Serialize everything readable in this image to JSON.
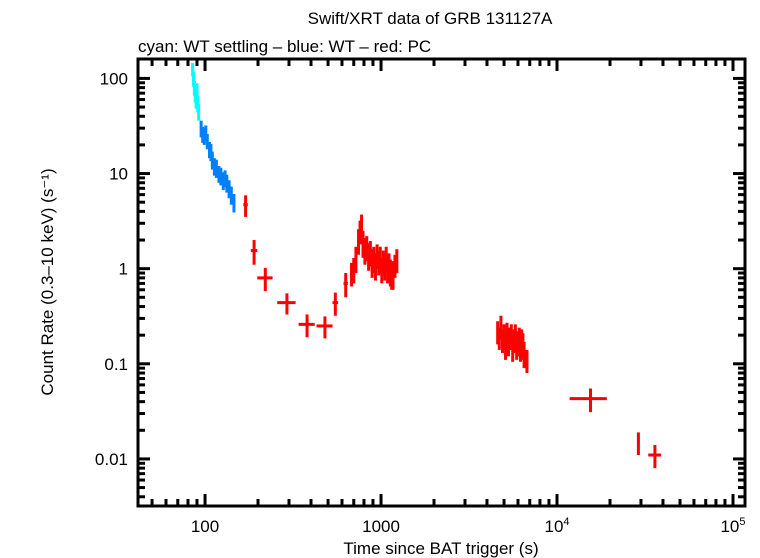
{
  "chart_data": {
    "type": "scatter",
    "title": "Swift/XRT data of GRB 131127A",
    "subtitle": "cyan: WT settling – blue: WT – red: PC",
    "xlabel": "Time since BAT trigger (s)",
    "ylabel": "Count Rate (0.3–10 keV) (s⁻¹)",
    "xscale": "log",
    "yscale": "log",
    "xlim": [
      41.6,
      117000
    ],
    "ylim": [
      0.0032,
      160
    ],
    "grid": false,
    "x_ticks": [
      {
        "value": 100,
        "base": "100",
        "exp": ""
      },
      {
        "value": 1000,
        "base": "1000",
        "exp": ""
      },
      {
        "value": 10000,
        "base": "10",
        "exp": "4"
      },
      {
        "value": 100000,
        "base": "10",
        "exp": "5"
      }
    ],
    "y_ticks": [
      {
        "value": 100,
        "label": "100"
      },
      {
        "value": 10,
        "label": "10"
      },
      {
        "value": 1,
        "label": "1"
      },
      {
        "value": 0.1,
        "label": "0.1"
      },
      {
        "value": 0.01,
        "label": "0.01"
      }
    ],
    "series": [
      {
        "mode": "WT settling",
        "color": "#00ffff",
        "points_format": [
          "t",
          "dt",
          "rate",
          "drate"
        ],
        "points": [
          [
            85,
            0.5,
            125,
            20
          ],
          [
            86,
            0.5,
            100,
            18
          ],
          [
            87,
            0.5,
            80,
            14
          ],
          [
            88,
            0.5,
            70,
            14
          ],
          [
            89,
            0.5,
            60,
            12
          ],
          [
            90,
            0.5,
            75,
            14
          ],
          [
            91,
            0.5,
            55,
            11
          ],
          [
            92,
            0.5,
            45,
            9
          ]
        ]
      },
      {
        "mode": "WT",
        "color": "#0080ff",
        "points_format": [
          "t",
          "dt",
          "rate",
          "drate"
        ],
        "points": [
          [
            95,
            1,
            30,
            6
          ],
          [
            97,
            1,
            26,
            5
          ],
          [
            99,
            1,
            25,
            5
          ],
          [
            101,
            1,
            27,
            5
          ],
          [
            103,
            1,
            22,
            4
          ],
          [
            106,
            1,
            18,
            3.5
          ],
          [
            108,
            1,
            17,
            3.5
          ],
          [
            110,
            1,
            14,
            3
          ],
          [
            113,
            1.5,
            12,
            2.5
          ],
          [
            116,
            1.5,
            11.5,
            2.5
          ],
          [
            120,
            1.5,
            10,
            2
          ],
          [
            123,
            1.5,
            9.5,
            2
          ],
          [
            127,
            1.5,
            8.5,
            1.8
          ],
          [
            130,
            1.5,
            9,
            1.8
          ],
          [
            133,
            1.5,
            8,
            1.7
          ],
          [
            137,
            2,
            7,
            1.5
          ],
          [
            141,
            2,
            6,
            1.3
          ],
          [
            146,
            2,
            5,
            1.1
          ]
        ]
      },
      {
        "mode": "PC",
        "color": "#ff0000",
        "points_format": [
          "t",
          "dt",
          "rate",
          "drate"
        ],
        "points": [
          [
            170,
            5,
            4.7,
            1.2
          ],
          [
            190,
            8,
            1.55,
            0.45
          ],
          [
            220,
            22,
            0.8,
            0.22
          ],
          [
            292,
            35,
            0.44,
            0.11
          ],
          [
            380,
            40,
            0.26,
            0.07
          ],
          [
            480,
            50,
            0.25,
            0.065
          ],
          [
            550,
            20,
            0.44,
            0.12
          ],
          [
            630,
            18,
            0.7,
            0.2
          ],
          [
            680,
            14,
            0.9,
            0.25
          ],
          [
            700,
            8,
            1.0,
            0.3
          ],
          [
            720,
            8,
            1.3,
            0.4
          ],
          [
            745,
            8,
            2.0,
            0.6
          ],
          [
            760,
            8,
            2.5,
            0.7
          ],
          [
            775,
            8,
            2.8,
            0.9
          ],
          [
            790,
            8,
            1.9,
            0.6
          ],
          [
            810,
            8,
            1.6,
            0.5
          ],
          [
            830,
            8,
            1.7,
            0.5
          ],
          [
            850,
            8,
            1.4,
            0.45
          ],
          [
            870,
            8,
            1.5,
            0.45
          ],
          [
            890,
            8,
            1.2,
            0.4
          ],
          [
            910,
            8,
            1.3,
            0.4
          ],
          [
            930,
            8,
            1.1,
            0.35
          ],
          [
            950,
            8,
            1.4,
            0.4
          ],
          [
            970,
            8,
            1.2,
            0.35
          ],
          [
            990,
            8,
            1.3,
            0.4
          ],
          [
            1010,
            8,
            1.0,
            0.3
          ],
          [
            1030,
            8,
            1.2,
            0.35
          ],
          [
            1050,
            8,
            1.1,
            0.35
          ],
          [
            1070,
            8,
            1.3,
            0.4
          ],
          [
            1090,
            8,
            1.0,
            0.3
          ],
          [
            1110,
            8,
            1.1,
            0.35
          ],
          [
            1130,
            8,
            0.95,
            0.3
          ],
          [
            1150,
            8,
            0.85,
            0.25
          ],
          [
            1170,
            8,
            0.9,
            0.3
          ],
          [
            1200,
            10,
            1.1,
            0.3
          ],
          [
            1230,
            10,
            1.25,
            0.35
          ],
          [
            4600,
            40,
            0.22,
            0.06
          ],
          [
            4700,
            40,
            0.19,
            0.05
          ],
          [
            4800,
            40,
            0.25,
            0.07
          ],
          [
            4900,
            40,
            0.18,
            0.05
          ],
          [
            5000,
            40,
            0.2,
            0.06
          ],
          [
            5100,
            40,
            0.16,
            0.05
          ],
          [
            5200,
            40,
            0.21,
            0.06
          ],
          [
            5300,
            40,
            0.17,
            0.05
          ],
          [
            5400,
            40,
            0.19,
            0.05
          ],
          [
            5500,
            40,
            0.2,
            0.06
          ],
          [
            5600,
            40,
            0.15,
            0.045
          ],
          [
            5700,
            40,
            0.18,
            0.05
          ],
          [
            5800,
            40,
            0.2,
            0.06
          ],
          [
            5900,
            40,
            0.16,
            0.05
          ],
          [
            6000,
            40,
            0.17,
            0.05
          ],
          [
            6100,
            40,
            0.19,
            0.05
          ],
          [
            6200,
            40,
            0.15,
            0.045
          ],
          [
            6300,
            40,
            0.18,
            0.05
          ],
          [
            6400,
            40,
            0.16,
            0.05
          ],
          [
            6500,
            50,
            0.13,
            0.04
          ],
          [
            6750,
            80,
            0.11,
            0.03
          ],
          [
            15500,
            3700,
            0.043,
            0.012
          ],
          [
            29000,
            500,
            0.015,
            0.004
          ],
          [
            36000,
            3000,
            0.011,
            0.003
          ]
        ]
      }
    ]
  }
}
